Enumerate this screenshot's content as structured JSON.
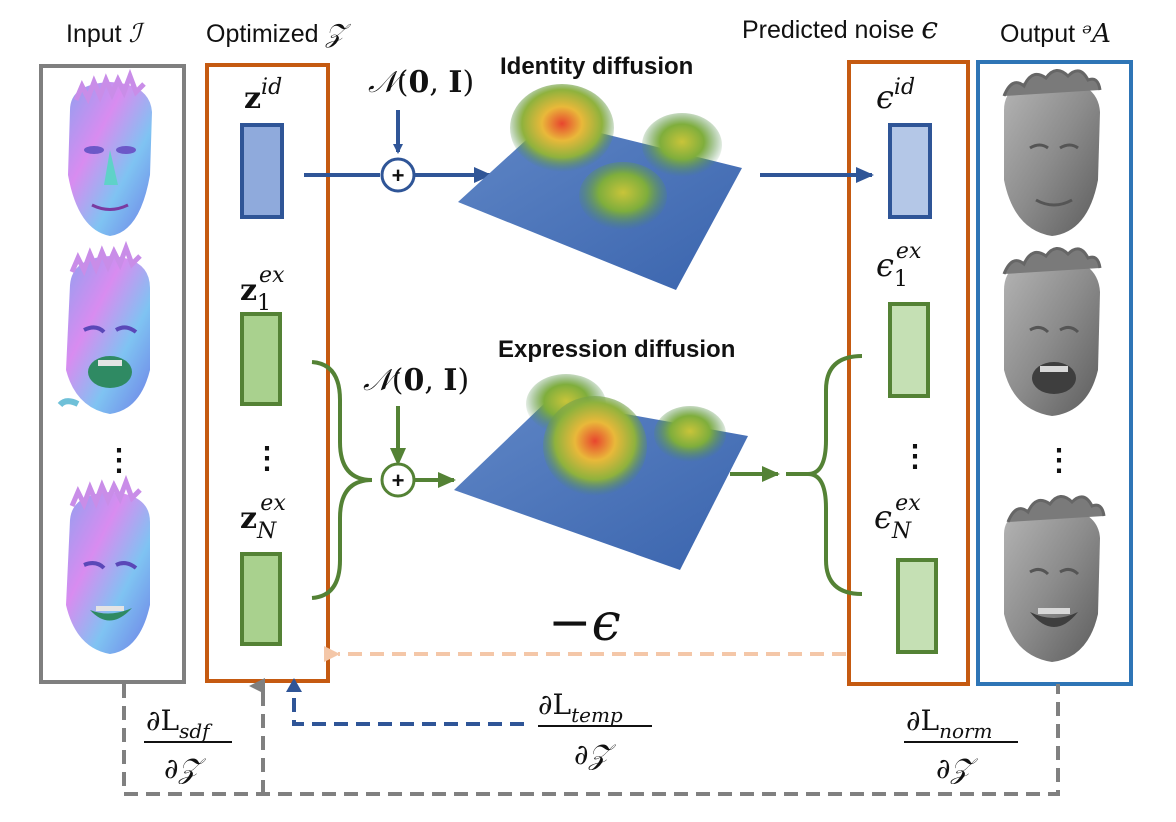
{
  "headers": {
    "input": "Input",
    "input_sym": "ℐ",
    "optimized": "Optimized",
    "optimized_sym": "ᵋ5",
    "predicted": "Predicted noise",
    "predicted_sym": "ϵ",
    "output": "Output",
    "output_sym": "ᵊA"
  },
  "diffusion": {
    "identity_title": "Identity diffusion",
    "expression_title": "Expression diffusion",
    "noise_top": "𝒩(0, I)",
    "noise_bottom": "𝒩(0, I)"
  },
  "latents": {
    "z_id": "z",
    "z_id_sup": "id",
    "z1": "z",
    "z1_sub": "1",
    "z1_sup": "ex",
    "zN": "z",
    "zN_sub": "N",
    "zN_sup": "ex",
    "dots": "⋮"
  },
  "noise": {
    "eps_id": "ϵ",
    "eps_id_sup": "id",
    "eps1": "ϵ",
    "eps1_sub": "1",
    "eps1_sup": "ex",
    "epsN": "ϵ",
    "epsN_sub": "N",
    "epsN_sup": "ex",
    "dots": "⋮",
    "neg_eps": "−ϵ"
  },
  "losses": {
    "sdf_num": "∂L",
    "sdf_sub": "sdf",
    "sdf_den": "∂𝒵",
    "temp_num": "∂L",
    "temp_sub": "temp",
    "temp_den": "∂𝒵",
    "norm_num": "∂L",
    "norm_sub": "norm",
    "norm_den": "∂𝒵"
  },
  "plus": "+",
  "colors": {
    "gray_box": "#7f7f7f",
    "orange_box": "#c55a11",
    "blue_box": "#2e75b6",
    "blue_arrow": "#2f5597",
    "green": "#548235",
    "blue_fill": "#8faadc",
    "light_blue_fill": "#b4c7e7",
    "green_fill": "#a9d18e",
    "light_green_fill": "#c5e0b4",
    "peach": "#f4c7a8",
    "dashed_gray": "#808080"
  }
}
